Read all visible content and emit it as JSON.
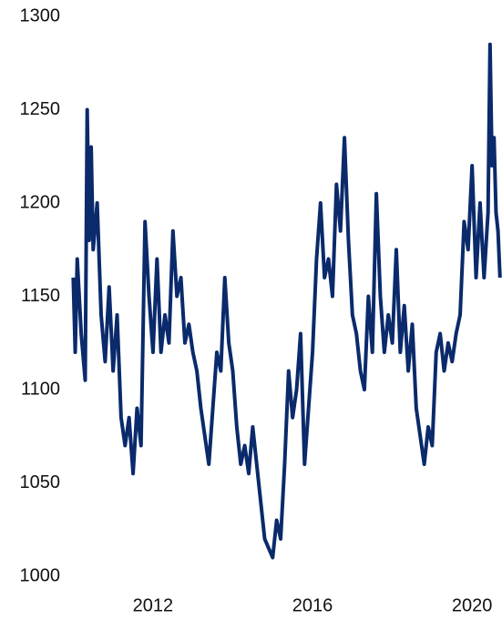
{
  "chart_data": {
    "type": "line",
    "x": [
      2010.0,
      2010.05,
      2010.1,
      2010.2,
      2010.3,
      2010.35,
      2010.4,
      2010.45,
      2010.5,
      2010.6,
      2010.7,
      2010.8,
      2010.9,
      2011.0,
      2011.1,
      2011.2,
      2011.3,
      2011.4,
      2011.5,
      2011.6,
      2011.7,
      2011.8,
      2011.9,
      2012.0,
      2012.1,
      2012.2,
      2012.3,
      2012.4,
      2012.5,
      2012.6,
      2012.7,
      2012.8,
      2012.9,
      2013.0,
      2013.1,
      2013.2,
      2013.3,
      2013.4,
      2013.5,
      2013.6,
      2013.7,
      2013.8,
      2013.9,
      2014.0,
      2014.1,
      2014.2,
      2014.3,
      2014.4,
      2014.5,
      2014.6,
      2014.7,
      2014.8,
      2014.9,
      2015.0,
      2015.1,
      2015.2,
      2015.3,
      2015.4,
      2015.5,
      2015.6,
      2015.7,
      2015.8,
      2015.9,
      2016.0,
      2016.1,
      2016.2,
      2016.3,
      2016.4,
      2016.5,
      2016.6,
      2016.7,
      2016.8,
      2016.9,
      2017.0,
      2017.1,
      2017.2,
      2017.3,
      2017.4,
      2017.5,
      2017.6,
      2017.7,
      2017.8,
      2017.9,
      2018.0,
      2018.1,
      2018.2,
      2018.3,
      2018.4,
      2018.5,
      2018.6,
      2018.7,
      2018.8,
      2018.9,
      2019.0,
      2019.1,
      2019.2,
      2019.3,
      2019.4,
      2019.5,
      2019.6,
      2019.7,
      2019.8,
      2019.9,
      2020.0,
      2020.1,
      2020.2,
      2020.3,
      2020.4,
      2020.45,
      2020.5,
      2020.55,
      2020.6,
      2020.65,
      2020.7
    ],
    "series": [
      {
        "color": "#0a2a6b",
        "values": [
          1160,
          1120,
          1170,
          1130,
          1105,
          1250,
          1180,
          1230,
          1175,
          1200,
          1140,
          1115,
          1155,
          1110,
          1140,
          1085,
          1070,
          1085,
          1055,
          1090,
          1070,
          1190,
          1150,
          1120,
          1170,
          1120,
          1140,
          1125,
          1185,
          1150,
          1160,
          1125,
          1135,
          1120,
          1110,
          1090,
          1075,
          1060,
          1090,
          1120,
          1110,
          1160,
          1125,
          1110,
          1080,
          1060,
          1070,
          1055,
          1080,
          1060,
          1040,
          1020,
          1015,
          1010,
          1030,
          1020,
          1060,
          1110,
          1085,
          1100,
          1130,
          1060,
          1090,
          1120,
          1170,
          1200,
          1160,
          1170,
          1150,
          1210,
          1185,
          1235,
          1180,
          1140,
          1130,
          1110,
          1100,
          1150,
          1120,
          1205,
          1150,
          1120,
          1140,
          1125,
          1175,
          1120,
          1145,
          1110,
          1135,
          1090,
          1075,
          1060,
          1080,
          1070,
          1120,
          1130,
          1110,
          1125,
          1115,
          1130,
          1140,
          1190,
          1175,
          1220,
          1160,
          1200,
          1160,
          1195,
          1285,
          1220,
          1235,
          1195,
          1185,
          1160
        ]
      }
    ],
    "xlim": [
      2009.9,
      2020.75
    ],
    "xticks": [
      2012,
      2016,
      2020
    ],
    "ylim": [
      1000,
      1300
    ],
    "yticks": [
      1000,
      1050,
      1100,
      1150,
      1200,
      1250,
      1300
    ]
  }
}
